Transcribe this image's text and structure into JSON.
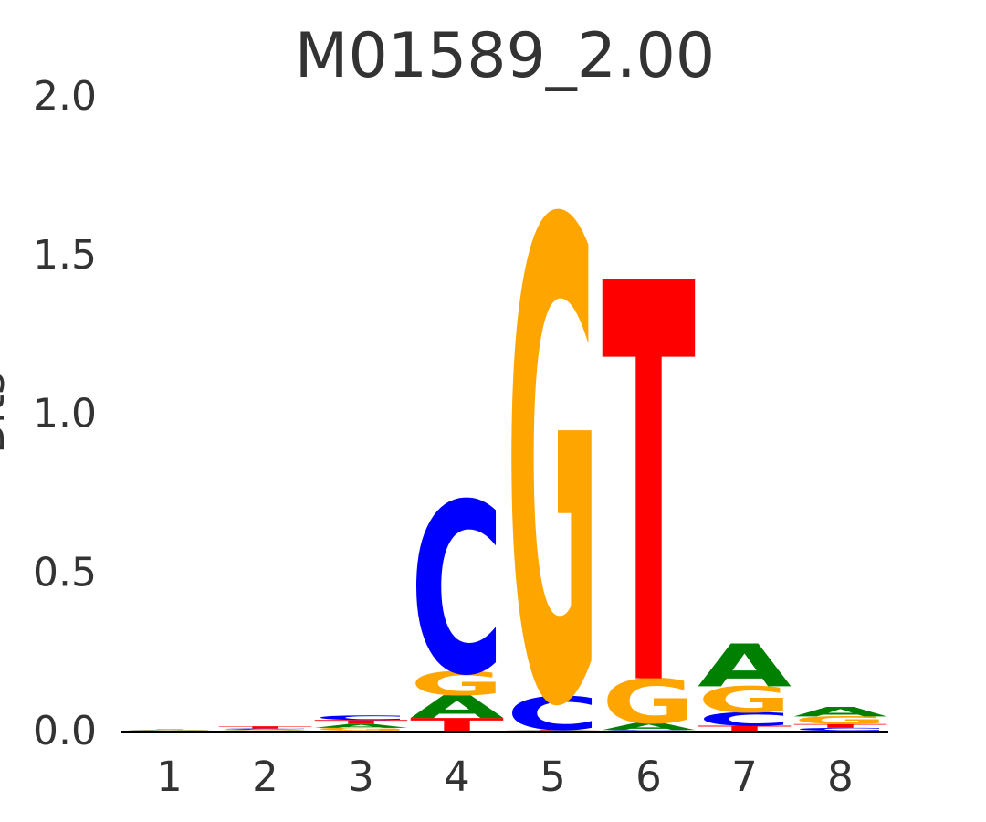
{
  "page": {
    "background_color": "#ffffff",
    "text_color": "#333333",
    "axis_color": "#000000"
  },
  "chart_data": {
    "type": "bar",
    "variant": "dna_sequence_logo",
    "title": "M01589_2.00",
    "ylabel": "Bits",
    "xlabel": "",
    "units": "bits",
    "ylim": [
      0,
      2.0
    ],
    "yticks": [
      "0.0",
      "0.5",
      "1.0",
      "1.5",
      "2.0"
    ],
    "ytick_values": [
      0,
      0.5,
      1.0,
      1.5,
      2.0
    ],
    "categories": [
      "1",
      "2",
      "3",
      "4",
      "5",
      "6",
      "7",
      "8"
    ],
    "grid": false,
    "legend_position": "none",
    "letter_colors": {
      "A": "#008000",
      "C": "#0000ff",
      "G": "#ffa500",
      "T": "#ff0000"
    },
    "positions": [
      {
        "position": 1,
        "stack": [
          {
            "base": "A",
            "bits": 0.001
          },
          {
            "base": "C",
            "bits": 0.001
          },
          {
            "base": "G",
            "bits": 0.001
          },
          {
            "base": "T",
            "bits": 0.001
          }
        ]
      },
      {
        "position": 2,
        "stack": [
          {
            "base": "G",
            "bits": 0.002
          },
          {
            "base": "A",
            "bits": 0.002
          },
          {
            "base": "C",
            "bits": 0.003
          },
          {
            "base": "T",
            "bits": 0.007
          }
        ]
      },
      {
        "position": 3,
        "stack": [
          {
            "base": "G",
            "bits": 0.009
          },
          {
            "base": "A",
            "bits": 0.012
          },
          {
            "base": "T",
            "bits": 0.013
          },
          {
            "base": "C",
            "bits": 0.014
          }
        ]
      },
      {
        "position": 4,
        "stack": [
          {
            "base": "T",
            "bits": 0.04
          },
          {
            "base": "A",
            "bits": 0.072
          },
          {
            "base": "G",
            "bits": 0.074
          },
          {
            "base": "C",
            "bits": 0.54
          }
        ]
      },
      {
        "position": 5,
        "stack": [
          {
            "base": "A",
            "bits": 0.001
          },
          {
            "base": "T",
            "bits": 0.002
          },
          {
            "base": "C",
            "bits": 0.106
          },
          {
            "base": "G",
            "bits": 1.51
          }
        ]
      },
      {
        "position": 6,
        "stack": [
          {
            "base": "C",
            "bits": 0.002
          },
          {
            "base": "A",
            "bits": 0.023
          },
          {
            "base": "G",
            "bits": 0.14
          },
          {
            "base": "T",
            "bits": 1.26
          }
        ]
      },
      {
        "position": 7,
        "stack": [
          {
            "base": "T",
            "bits": 0.016
          },
          {
            "base": "C",
            "bits": 0.042
          },
          {
            "base": "G",
            "bits": 0.082
          },
          {
            "base": "A",
            "bits": 0.135
          }
        ]
      },
      {
        "position": 8,
        "stack": [
          {
            "base": "C",
            "bits": 0.009
          },
          {
            "base": "T",
            "bits": 0.012
          },
          {
            "base": "G",
            "bits": 0.024
          },
          {
            "base": "A",
            "bits": 0.03
          }
        ]
      }
    ]
  }
}
